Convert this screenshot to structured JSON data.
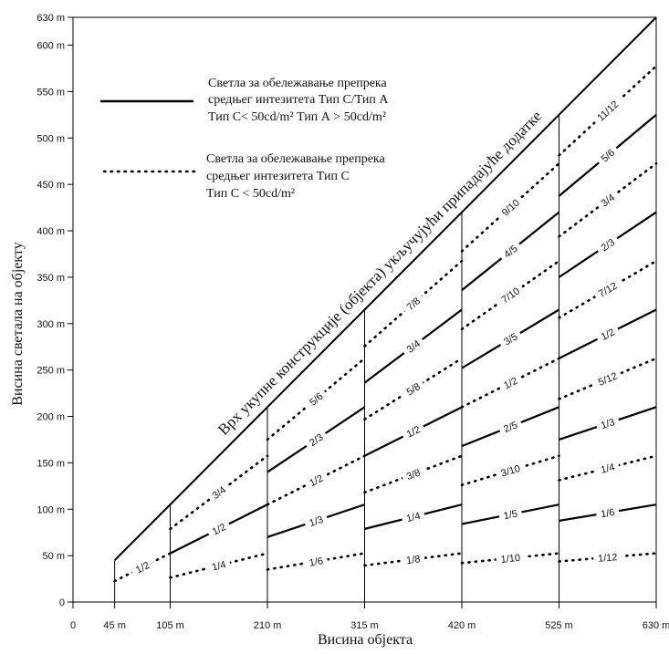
{
  "chart_data": {
    "type": "line",
    "xlabel": "Висина објекта",
    "ylabel": "Висина светала на објекту",
    "xlim": [
      0,
      630
    ],
    "ylim": [
      0,
      630
    ],
    "x_ticks": [
      {
        "value": 0,
        "label": "0"
      },
      {
        "value": 45,
        "label": "45 m"
      },
      {
        "value": 105,
        "label": "105 m"
      },
      {
        "value": 210,
        "label": "210 m"
      },
      {
        "value": 315,
        "label": "315 m"
      },
      {
        "value": 420,
        "label": "420 m"
      },
      {
        "value": 525,
        "label": "525 m"
      },
      {
        "value": 630,
        "label": "630 m"
      }
    ],
    "y_ticks": [
      {
        "value": 0,
        "label": "0"
      },
      {
        "value": 50,
        "label": "50 m"
      },
      {
        "value": 100,
        "label": "100 m"
      },
      {
        "value": 150,
        "label": "150 m"
      },
      {
        "value": 200,
        "label": "200 m"
      },
      {
        "value": 250,
        "label": "250 m"
      },
      {
        "value": 300,
        "label": "300 m"
      },
      {
        "value": 350,
        "label": "350 m"
      },
      {
        "value": 400,
        "label": "400 m"
      },
      {
        "value": 450,
        "label": "450 m"
      },
      {
        "value": 500,
        "label": "500 m"
      },
      {
        "value": 550,
        "label": "550 m"
      },
      {
        "value": 600,
        "label": "600 m"
      },
      {
        "value": 630,
        "label": "630 m"
      }
    ],
    "verticals": [
      45,
      105,
      210,
      315,
      420,
      525,
      630
    ],
    "diagonal": {
      "label": "Врх укупне конструкције (објекта) укључујући припадајуће додатке",
      "from": [
        45,
        45
      ],
      "to": [
        630,
        630
      ]
    },
    "legend": {
      "position": "top-left",
      "solid_lines": [
        "Светла за обележавање препрека",
        "средњег интезитета Тип С/Тип А",
        "Тип С< 50cd/m²   Тип А > 50cd/m²"
      ],
      "dotted_lines": [
        "Светла за обележавање препрека",
        "средњег интезитета Тип С",
        "Тип С < 50cd/m²"
      ]
    },
    "segments": [
      {
        "style": "dotted",
        "from": [
          45,
          22.5
        ],
        "to": [
          105,
          52.5
        ],
        "label": "1/2"
      },
      {
        "style": "dotted",
        "from": [
          105,
          26.25
        ],
        "to": [
          210,
          52.5
        ],
        "label": "1/4"
      },
      {
        "style": "solid",
        "from": [
          105,
          52.5
        ],
        "to": [
          210,
          105
        ],
        "label": "1/2"
      },
      {
        "style": "dotted",
        "from": [
          105,
          78.75
        ],
        "to": [
          210,
          157.5
        ],
        "label": "3/4"
      },
      {
        "style": "dotted",
        "from": [
          210,
          35
        ],
        "to": [
          315,
          52.5
        ],
        "label": "1/6"
      },
      {
        "style": "solid",
        "from": [
          210,
          70
        ],
        "to": [
          315,
          105
        ],
        "label": "1/3"
      },
      {
        "style": "dotted",
        "from": [
          210,
          105
        ],
        "to": [
          315,
          157.5
        ],
        "label": "1/2"
      },
      {
        "style": "solid",
        "from": [
          210,
          140
        ],
        "to": [
          315,
          210
        ],
        "label": "2/3"
      },
      {
        "style": "dotted",
        "from": [
          210,
          175
        ],
        "to": [
          315,
          262.5
        ],
        "label": "5/6"
      },
      {
        "style": "dotted",
        "from": [
          315,
          39.4
        ],
        "to": [
          420,
          52.5
        ],
        "label": "1/8"
      },
      {
        "style": "solid",
        "from": [
          315,
          78.75
        ],
        "to": [
          420,
          105
        ],
        "label": "1/4"
      },
      {
        "style": "dotted",
        "from": [
          315,
          118.1
        ],
        "to": [
          420,
          157.5
        ],
        "label": "3/8"
      },
      {
        "style": "solid",
        "from": [
          315,
          157.5
        ],
        "to": [
          420,
          210
        ],
        "label": "1/2"
      },
      {
        "style": "dotted",
        "from": [
          315,
          196.9
        ],
        "to": [
          420,
          262.5
        ],
        "label": "5/8"
      },
      {
        "style": "solid",
        "from": [
          315,
          236.25
        ],
        "to": [
          420,
          315
        ],
        "label": "3/4"
      },
      {
        "style": "dotted",
        "from": [
          315,
          275.6
        ],
        "to": [
          420,
          367.5
        ],
        "label": "7/8"
      },
      {
        "style": "dotted",
        "from": [
          420,
          42
        ],
        "to": [
          525,
          52.5
        ],
        "label": "1/10"
      },
      {
        "style": "solid",
        "from": [
          420,
          84
        ],
        "to": [
          525,
          105
        ],
        "label": "1/5"
      },
      {
        "style": "dotted",
        "from": [
          420,
          126
        ],
        "to": [
          525,
          157.5
        ],
        "label": "3/10"
      },
      {
        "style": "solid",
        "from": [
          420,
          168
        ],
        "to": [
          525,
          210
        ],
        "label": "2/5"
      },
      {
        "style": "dotted",
        "from": [
          420,
          210
        ],
        "to": [
          525,
          262.5
        ],
        "label": "1/2"
      },
      {
        "style": "solid",
        "from": [
          420,
          252
        ],
        "to": [
          525,
          315
        ],
        "label": "3/5"
      },
      {
        "style": "dotted",
        "from": [
          420,
          294
        ],
        "to": [
          525,
          367.5
        ],
        "label": "7/10"
      },
      {
        "style": "solid",
        "from": [
          420,
          336
        ],
        "to": [
          525,
          420
        ],
        "label": "4/5"
      },
      {
        "style": "dotted",
        "from": [
          420,
          378
        ],
        "to": [
          525,
          472.5
        ],
        "label": "9/10"
      },
      {
        "style": "dotted",
        "from": [
          525,
          43.75
        ],
        "to": [
          630,
          52.5
        ],
        "label": "1/12"
      },
      {
        "style": "solid",
        "from": [
          525,
          87.5
        ],
        "to": [
          630,
          105
        ],
        "label": "1/6"
      },
      {
        "style": "dotted",
        "from": [
          525,
          131.25
        ],
        "to": [
          630,
          157.5
        ],
        "label": "1/4"
      },
      {
        "style": "solid",
        "from": [
          525,
          175
        ],
        "to": [
          630,
          210
        ],
        "label": "1/3"
      },
      {
        "style": "dotted",
        "from": [
          525,
          218.75
        ],
        "to": [
          630,
          262.5
        ],
        "label": "5/12"
      },
      {
        "style": "solid",
        "from": [
          525,
          262.5
        ],
        "to": [
          630,
          315
        ],
        "label": "1/2"
      },
      {
        "style": "dotted",
        "from": [
          525,
          306.25
        ],
        "to": [
          630,
          367.5
        ],
        "label": "7/12"
      },
      {
        "style": "solid",
        "from": [
          525,
          350
        ],
        "to": [
          630,
          420
        ],
        "label": "2/3"
      },
      {
        "style": "dotted",
        "from": [
          525,
          393.75
        ],
        "to": [
          630,
          472.5
        ],
        "label": "3/4"
      },
      {
        "style": "solid",
        "from": [
          525,
          437.5
        ],
        "to": [
          630,
          525
        ],
        "label": "5/6"
      },
      {
        "style": "dotted",
        "from": [
          525,
          481.25
        ],
        "to": [
          630,
          577.5
        ],
        "label": "11/12"
      }
    ]
  }
}
